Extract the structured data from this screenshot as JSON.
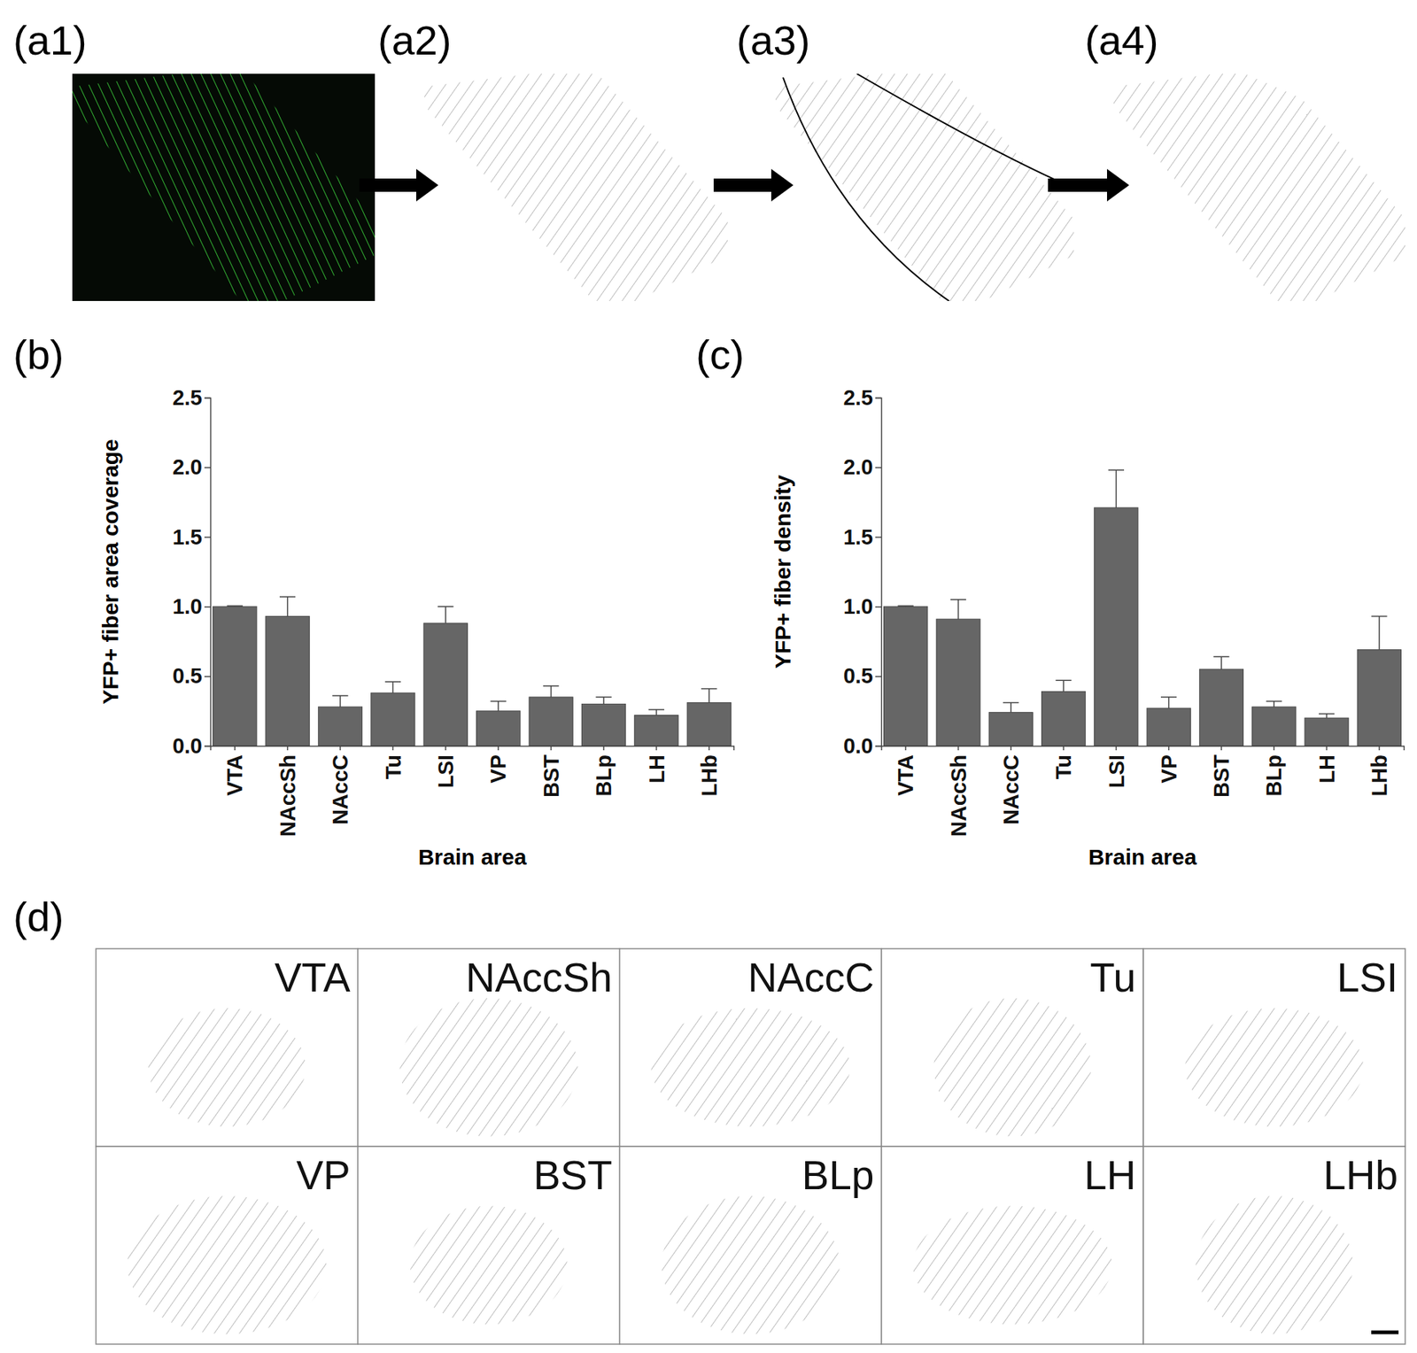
{
  "panel_labels": [
    "(a1)",
    "(a2)",
    "(a3)",
    "(a4)",
    "(b)",
    "(c)",
    "(d)"
  ],
  "region_images": [
    "VTA",
    "NAccSh",
    "NAccC",
    "Tu",
    "LSI",
    "VP",
    "BST",
    "BLp",
    "LH",
    "LHb"
  ],
  "chart_data": [
    {
      "type": "bar",
      "y_label": "YFP+ fiber area coverage",
      "x_label": "Brain area",
      "categories": [
        "VTA",
        "NAccSh",
        "NAccC",
        "Tu",
        "LSI",
        "VP",
        "BST",
        "BLp",
        "LH",
        "LHb"
      ],
      "values": [
        1.0,
        0.93,
        0.28,
        0.38,
        0.88,
        0.25,
        0.35,
        0.3,
        0.22,
        0.31
      ],
      "errors": [
        0.005,
        0.14,
        0.08,
        0.08,
        0.12,
        0.07,
        0.08,
        0.05,
        0.04,
        0.1
      ],
      "color": "#666666",
      "ylim": [
        0,
        2.5
      ],
      "yticks": [
        {
          "value": 0,
          "label": "0.0"
        },
        {
          "value": 0.5,
          "label": "0.5"
        },
        {
          "value": 1,
          "label": "1.0"
        },
        {
          "value": 1.5,
          "label": "1.5"
        },
        {
          "value": 2,
          "label": "2.0"
        },
        {
          "value": 2.5,
          "label": "2.5"
        }
      ]
    },
    {
      "type": "bar",
      "y_label": "YFP+ fiber density",
      "x_label": "Brain area",
      "categories": [
        "VTA",
        "NAccSh",
        "NAccC",
        "Tu",
        "LSI",
        "VP",
        "BST",
        "BLp",
        "LH",
        "LHb"
      ],
      "values": [
        1.0,
        0.91,
        0.24,
        0.39,
        1.71,
        0.27,
        0.55,
        0.28,
        0.2,
        0.69
      ],
      "errors": [
        0.005,
        0.14,
        0.07,
        0.08,
        0.27,
        0.08,
        0.09,
        0.04,
        0.03,
        0.24
      ],
      "color": "#666666",
      "ylim": [
        0,
        2.5
      ],
      "yticks": [
        {
          "value": 0,
          "label": "0.0"
        },
        {
          "value": 0.5,
          "label": "0.5"
        },
        {
          "value": 1,
          "label": "1.0"
        },
        {
          "value": 1.5,
          "label": "1.5"
        },
        {
          "value": 2,
          "label": "2.0"
        },
        {
          "value": 2.5,
          "label": "2.5"
        }
      ]
    }
  ]
}
